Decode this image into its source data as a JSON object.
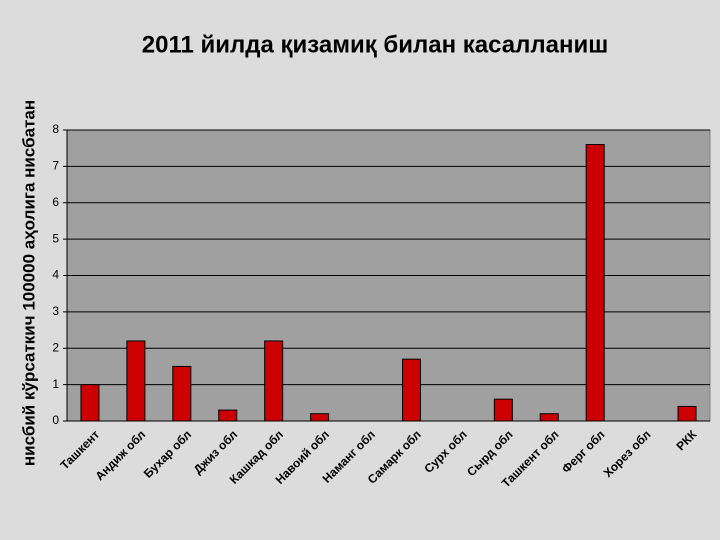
{
  "chart_data": {
    "type": "bar",
    "title": "2011 йилда қизамиқ билан касалланиш",
    "y_label": "нисбий кўрсаткич 100000 аҳолига нисбатан",
    "categories": [
      "Ташкент",
      "Андиж обл",
      "Бухар обл",
      "Джиз обл",
      "Кашкад обл",
      "Навоий обл",
      "Наманг обл",
      "Самарк обл",
      "Сурх обл",
      "Сырд обл",
      "Ташкент обл",
      "Ферг обл",
      "Хорез обл",
      "РКК"
    ],
    "values": [
      1.0,
      2.2,
      1.5,
      0.3,
      2.2,
      0.2,
      0,
      1.7,
      0,
      0.6,
      0.2,
      7.6,
      0,
      0.4
    ],
    "color": "#cc0000",
    "ylim": [
      0,
      8
    ],
    "yticks": [
      0,
      1,
      2,
      3,
      4,
      5,
      6,
      7,
      8
    ],
    "grid": true
  }
}
